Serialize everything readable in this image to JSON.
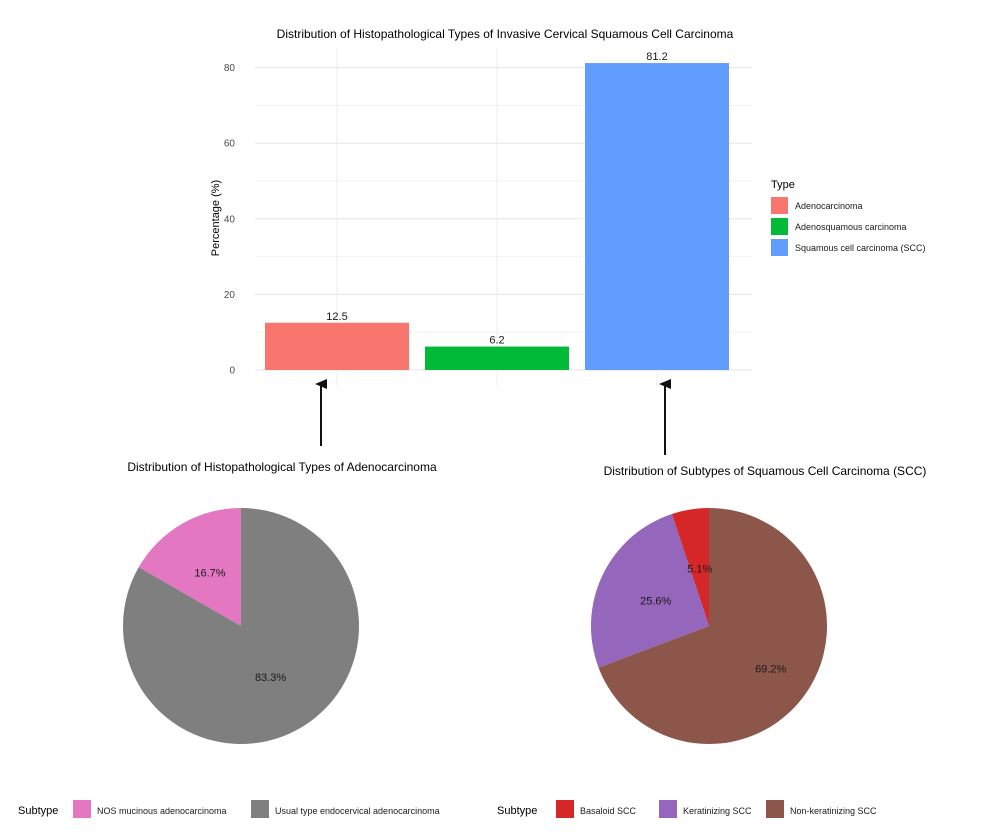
{
  "chart_data": [
    {
      "type": "bar",
      "title": "Distribution of Histopathological Types of Invasive Cervical Squamous Cell Carcinoma",
      "xlabel": "",
      "ylabel": "Percentage (%)",
      "ylim": [
        0,
        84
      ],
      "yticks": [
        "0",
        "20",
        "40",
        "60",
        "80"
      ],
      "grid": true,
      "legend_title": "Type",
      "legend_position": "right",
      "categories": [
        "Adenocarcinoma",
        "Adenosquamous carcinoma",
        "Squamous cell carcinoma (SCC)"
      ],
      "values": [
        12.5,
        6.2,
        81.2
      ],
      "value_labels": [
        "12.5",
        "6.2",
        "81.2"
      ],
      "colors": [
        "#F8766D",
        "#00BA38",
        "#619CFF"
      ]
    },
    {
      "type": "pie",
      "title": "Distribution of Histopathological Types of Adenocarcinoma",
      "legend_title": "Subtype",
      "legend_position": "bottom",
      "categories": [
        "NOS mucinous adenocarcinoma",
        "Usual type endocervical adenocarcinoma"
      ],
      "values": [
        16.7,
        83.3
      ],
      "value_labels": [
        "16.7%",
        "83.3%"
      ],
      "colors": [
        "#E377C2",
        "#7F7F7F"
      ]
    },
    {
      "type": "pie",
      "title": "Distribution of Subtypes of Squamous Cell Carcinoma (SCC)",
      "legend_title": "Subtype",
      "legend_position": "bottom",
      "categories": [
        "Basaloid SCC",
        "Keratinizing SCC",
        "Non-keratinizing SCC"
      ],
      "values": [
        5.1,
        25.6,
        69.2
      ],
      "value_labels": [
        "5.1%",
        "25.6%",
        "69.2%"
      ],
      "colors": [
        "#D62728",
        "#9467BD",
        "#8C564B"
      ]
    }
  ]
}
